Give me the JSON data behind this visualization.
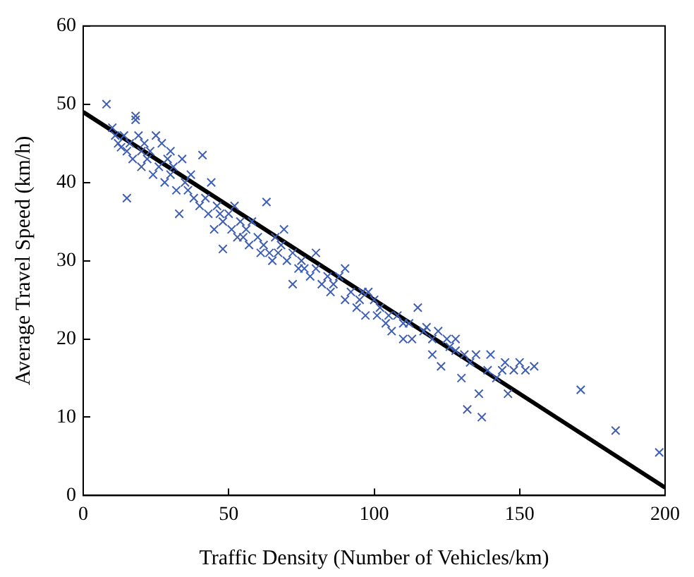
{
  "chart_data": {
    "type": "scatter",
    "xlabel": "Traffic Density (Number of Vehicles/km)",
    "ylabel": "Average Travel Speed (km/h)",
    "xlim": [
      0,
      200
    ],
    "ylim": [
      0,
      60
    ],
    "xticks": [
      0,
      50,
      100,
      150,
      200
    ],
    "yticks": [
      0,
      10,
      20,
      30,
      40,
      50,
      60
    ],
    "grid": false,
    "legend": false,
    "series": [
      {
        "marker": "cross",
        "color": "#3f5fb5",
        "x": [
          8,
          10,
          11,
          12,
          13,
          14,
          15,
          15,
          16,
          17,
          18,
          18,
          19,
          20,
          20,
          21,
          22,
          23,
          24,
          25,
          26,
          27,
          28,
          29,
          30,
          30,
          31,
          32,
          33,
          34,
          35,
          36,
          37,
          38,
          40,
          41,
          42,
          43,
          44,
          45,
          46,
          47,
          48,
          48,
          50,
          51,
          52,
          53,
          54,
          55,
          56,
          57,
          58,
          60,
          61,
          62,
          63,
          64,
          65,
          66,
          67,
          68,
          69,
          70,
          72,
          72,
          74,
          75,
          76,
          78,
          80,
          80,
          82,
          84,
          85,
          86,
          88,
          90,
          90,
          92,
          94,
          95,
          96,
          97,
          98,
          100,
          101,
          102,
          104,
          105,
          106,
          108,
          110,
          110,
          112,
          113,
          115,
          117,
          118,
          120,
          120,
          122,
          123,
          125,
          126,
          128,
          128,
          130,
          131,
          132,
          133,
          135,
          136,
          137,
          139,
          140,
          142,
          144,
          145,
          146,
          148,
          150,
          152,
          155,
          171,
          183,
          198
        ],
        "values": [
          50,
          47,
          46,
          45,
          44.5,
          46,
          44,
          38,
          45,
          43,
          48.5,
          48,
          46,
          44,
          42,
          45,
          43,
          44,
          41,
          46,
          42,
          45,
          40,
          43,
          44,
          41,
          42,
          39,
          36,
          43,
          40,
          39,
          41,
          38,
          37,
          43.5,
          38,
          36,
          40,
          34,
          37,
          36,
          31.5,
          35,
          36,
          34,
          37,
          33,
          35,
          33,
          34,
          32,
          35,
          33,
          31,
          32,
          37.5,
          31,
          30,
          33,
          31,
          32,
          34,
          30,
          27,
          31,
          29,
          30,
          29,
          28,
          29,
          31,
          27,
          28,
          26,
          27,
          28,
          25,
          29,
          26,
          24,
          25,
          26,
          23,
          26,
          25,
          23,
          24,
          22,
          23,
          21,
          23,
          22,
          20,
          22,
          20,
          24,
          21,
          21.5,
          18,
          20,
          21,
          16.5,
          20,
          19,
          18.5,
          20,
          15,
          18,
          11,
          17,
          18,
          13,
          10,
          16,
          18,
          15,
          16,
          17,
          13,
          16,
          17,
          16,
          16.5,
          13.5,
          8.3,
          5.5
        ]
      },
      {
        "type": "line",
        "color": "#000000",
        "marker": "none",
        "x": [
          0,
          200
        ],
        "values": [
          49,
          1
        ]
      }
    ]
  }
}
